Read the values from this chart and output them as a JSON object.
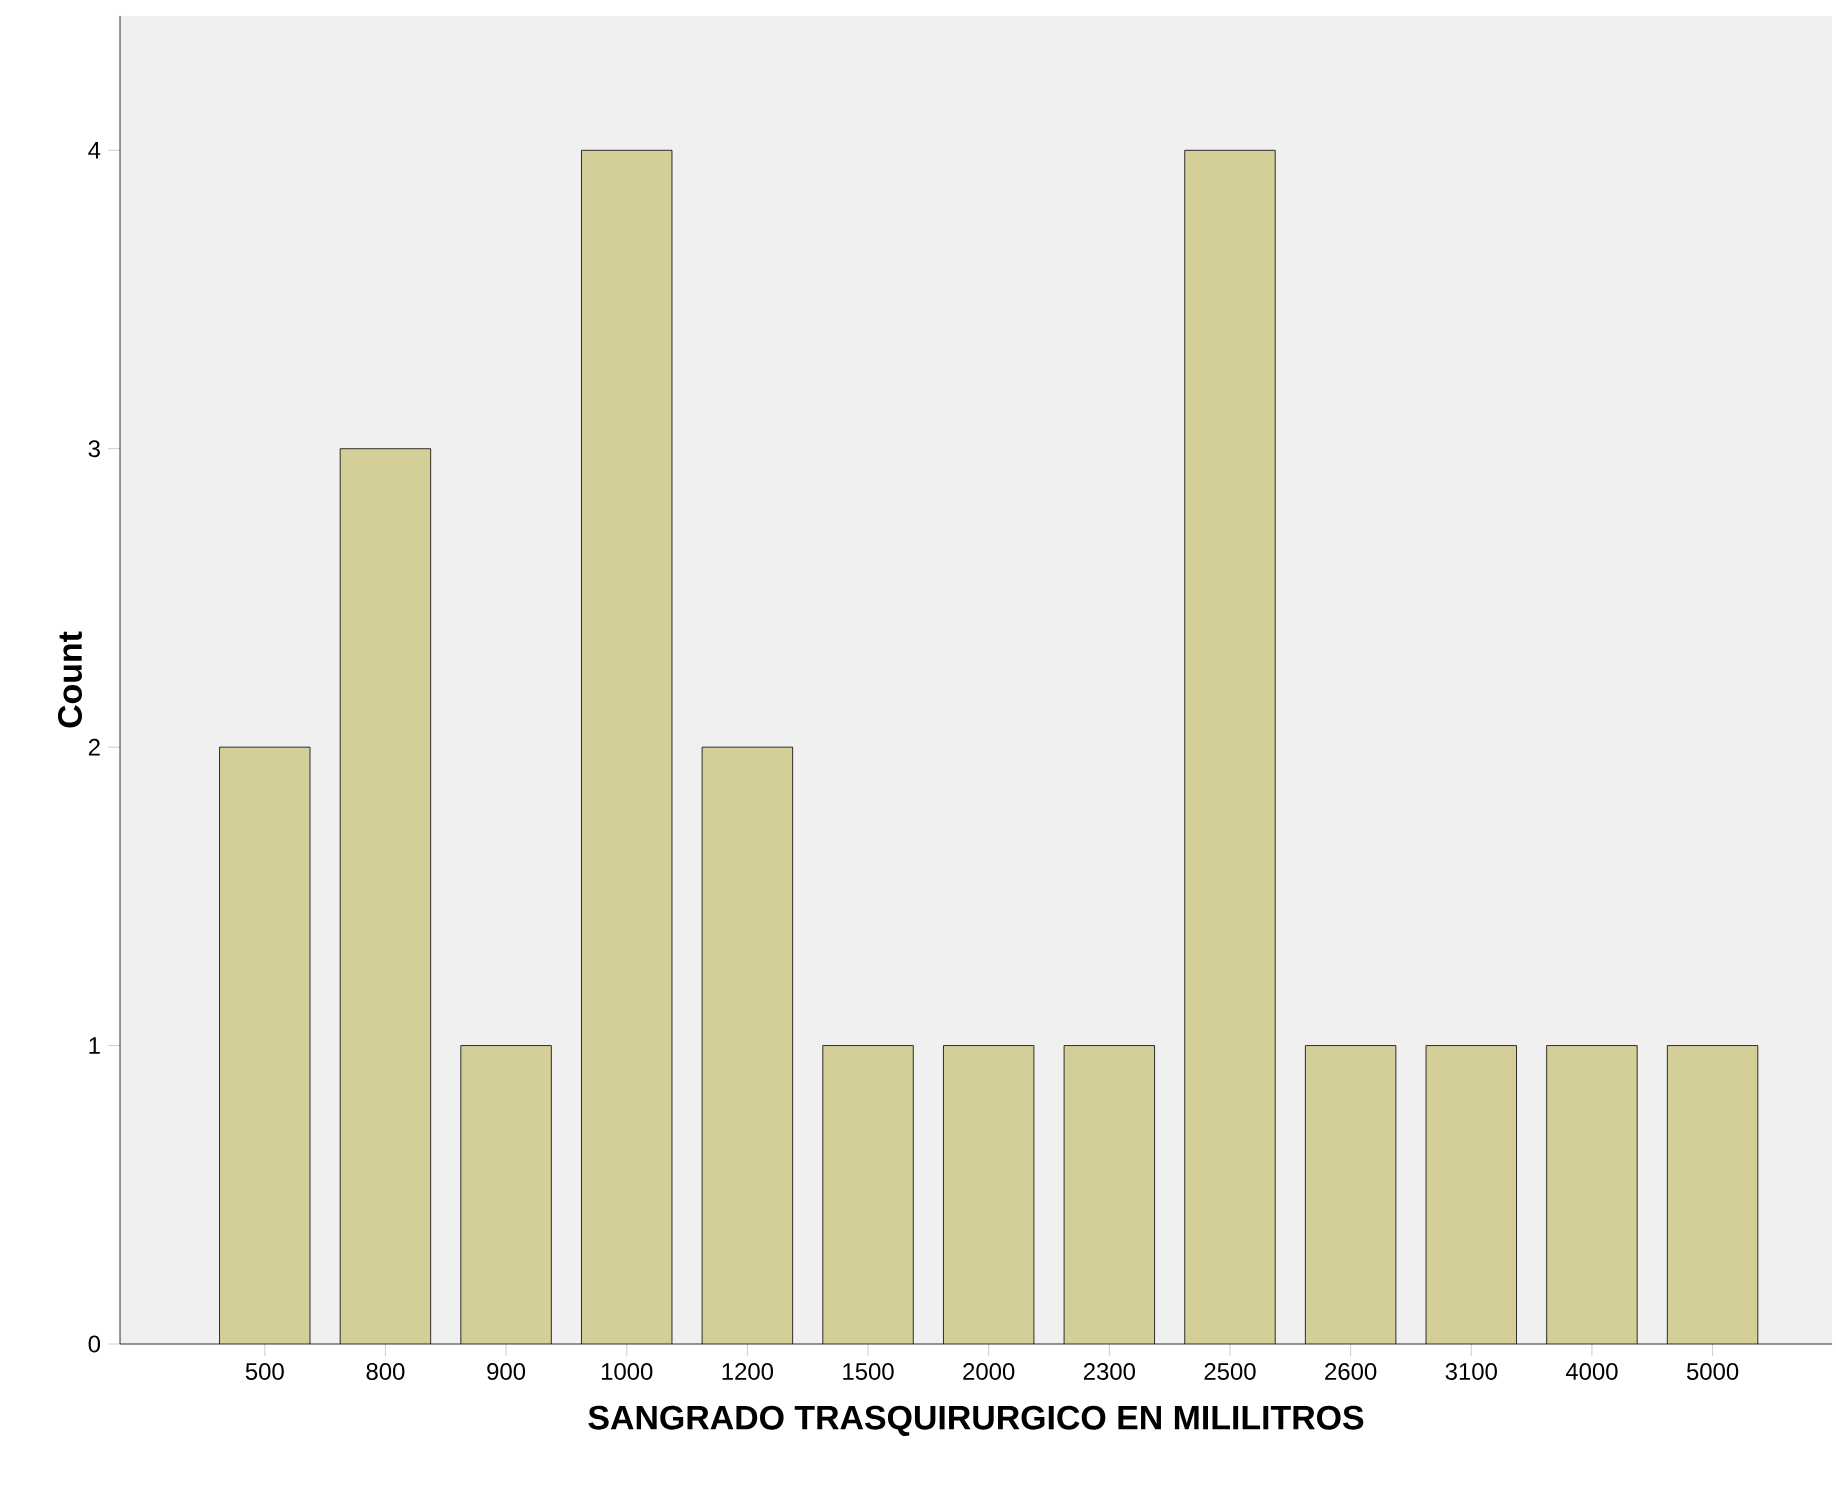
{
  "chart_data": {
    "type": "bar",
    "xlabel": "SANGRADO TRASQUIRURGICO EN MILILITROS",
    "ylabel": "Count",
    "categories": [
      "500",
      "800",
      "900",
      "1000",
      "1200",
      "1500",
      "2000",
      "2300",
      "2500",
      "2600",
      "3100",
      "4000",
      "5000"
    ],
    "values": [
      2,
      3,
      1,
      4,
      2,
      1,
      1,
      1,
      4,
      1,
      1,
      1,
      1
    ],
    "color": "#d4cf99",
    "ylim": [
      0,
      4.45
    ],
    "yticks": [
      0,
      1,
      2,
      3,
      4
    ],
    "grid": false
  }
}
